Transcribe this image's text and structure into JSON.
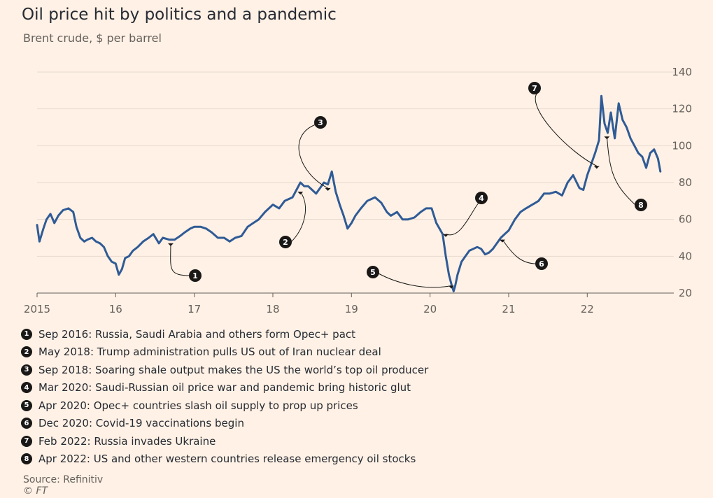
{
  "header": {
    "title": "Oil price hit by politics and a pandemic",
    "subtitle": "Brent crude, $ per barrel"
  },
  "colors": {
    "line": "#2f5b96",
    "background": "#fff1e5",
    "marker": "#1a1817"
  },
  "chart_data": {
    "type": "line",
    "title": "Oil price hit by politics and a pandemic",
    "subtitle": "Brent crude, $ per barrel",
    "ylim": [
      20,
      140
    ],
    "xlim": [
      2015,
      2022.95
    ],
    "y_ticks": [
      20,
      40,
      60,
      80,
      100,
      120,
      140
    ],
    "y_axis_side": "right",
    "x_ticks": [
      {
        "value": 2015,
        "label": "2015"
      },
      {
        "value": 2016,
        "label": "16"
      },
      {
        "value": 2017,
        "label": "17"
      },
      {
        "value": 2018,
        "label": "18"
      },
      {
        "value": 2019,
        "label": "19"
      },
      {
        "value": 2020,
        "label": "20"
      },
      {
        "value": 2021,
        "label": "21"
      },
      {
        "value": 2022,
        "label": "22"
      }
    ],
    "grid": "horizontal",
    "series": [
      {
        "x": [
          2015.0,
          2015.03,
          2015.08,
          2015.12,
          2015.17,
          2015.22,
          2015.27,
          2015.33,
          2015.4,
          2015.46,
          2015.5,
          2015.55,
          2015.6,
          2015.64,
          2015.7,
          2015.75,
          2015.8,
          2015.85,
          2015.9,
          2015.95,
          2016.0,
          2016.04,
          2016.08,
          2016.12,
          2016.17,
          2016.22,
          2016.28,
          2016.35,
          2016.42,
          2016.48,
          2016.55,
          2016.6,
          2016.68,
          2016.75,
          2016.82,
          2016.88,
          2016.95,
          2017.0,
          2017.08,
          2017.15,
          2017.22,
          2017.3,
          2017.38,
          2017.45,
          2017.52,
          2017.6,
          2017.68,
          2017.75,
          2017.82,
          2017.9,
          2018.0,
          2018.08,
          2018.15,
          2018.25,
          2018.3,
          2018.35,
          2018.4,
          2018.45,
          2018.5,
          2018.55,
          2018.6,
          2018.65,
          2018.7,
          2018.75,
          2018.8,
          2018.85,
          2018.9,
          2018.95,
          2019.0,
          2019.05,
          2019.12,
          2019.2,
          2019.3,
          2019.38,
          2019.45,
          2019.5,
          2019.58,
          2019.65,
          2019.72,
          2019.8,
          2019.88,
          2019.95,
          2020.02,
          2020.08,
          2020.12,
          2020.16,
          2020.2,
          2020.24,
          2020.27,
          2020.3,
          2020.32,
          2020.35,
          2020.4,
          2020.45,
          2020.5,
          2020.55,
          2020.6,
          2020.65,
          2020.7,
          2020.75,
          2020.8,
          2020.85,
          2020.9,
          2020.95,
          2021.0,
          2021.08,
          2021.15,
          2021.22,
          2021.3,
          2021.38,
          2021.45,
          2021.52,
          2021.6,
          2021.68,
          2021.75,
          2021.82,
          2021.9,
          2021.95,
          2022.0,
          2022.05,
          2022.1,
          2022.15,
          2022.18,
          2022.22,
          2022.26,
          2022.3,
          2022.35,
          2022.4,
          2022.45,
          2022.5,
          2022.55,
          2022.6,
          2022.65,
          2022.7,
          2022.75,
          2022.8,
          2022.85,
          2022.9,
          2022.93
        ],
        "values": [
          57,
          48,
          55,
          60,
          63,
          58,
          62,
          65,
          66,
          64,
          56,
          50,
          48,
          49,
          50,
          48,
          47,
          45,
          40,
          37,
          36,
          30,
          33,
          39,
          40,
          43,
          45,
          48,
          50,
          52,
          47,
          50,
          49,
          49,
          51,
          53,
          55,
          56,
          56,
          55,
          53,
          50,
          50,
          48,
          50,
          51,
          56,
          58,
          60,
          64,
          68,
          66,
          70,
          72,
          76,
          80,
          78,
          78,
          76,
          74,
          77,
          80,
          79,
          86,
          75,
          68,
          62,
          55,
          58,
          62,
          66,
          70,
          72,
          69,
          64,
          62,
          64,
          60,
          60,
          61,
          64,
          66,
          66,
          58,
          55,
          52,
          40,
          30,
          25,
          21,
          24,
          30,
          37,
          40,
          43,
          44,
          45,
          44,
          41,
          42,
          44,
          47,
          50,
          52,
          54,
          60,
          64,
          66,
          68,
          70,
          74,
          74,
          75,
          73,
          80,
          84,
          77,
          76,
          84,
          90,
          96,
          103,
          127,
          112,
          107,
          118,
          104,
          123,
          114,
          110,
          104,
          100,
          96,
          94,
          88,
          96,
          98,
          93,
          86
        ]
      }
    ],
    "annotations": [
      {
        "id": "1",
        "date": 2016.7,
        "value": 47,
        "text": "Sep 2016: Russia, Saudi Arabia and others form Opec+ pact"
      },
      {
        "id": "2",
        "date": 2018.35,
        "value": 75,
        "text": "May 2018: Trump administration pulls US out of Iran nuclear deal"
      },
      {
        "id": "3",
        "date": 2018.7,
        "value": 77,
        "text": "Sep 2018: Soaring shale output makes the US the world’s top oil producer"
      },
      {
        "id": "4",
        "date": 2020.2,
        "value": 52,
        "text": "Mar 2020: Saudi-Russian oil price war and pandemic bring historic glut"
      },
      {
        "id": "5",
        "date": 2020.27,
        "value": 24,
        "text": "Apr 2020: Opec+ countries slash oil supply to prop up prices"
      },
      {
        "id": "6",
        "date": 2020.92,
        "value": 49,
        "text": "Dec 2020: Covid-19 vaccinations begin"
      },
      {
        "id": "7",
        "date": 2022.12,
        "value": 89,
        "text": "Feb 2022: Russia invades Ukraine"
      },
      {
        "id": "8",
        "date": 2022.25,
        "value": 105,
        "text": "Apr 2022: US and other western countries release emergency oil stocks"
      }
    ]
  },
  "footer": {
    "source": "Source: Refinitiv",
    "copyright": "© FT"
  }
}
